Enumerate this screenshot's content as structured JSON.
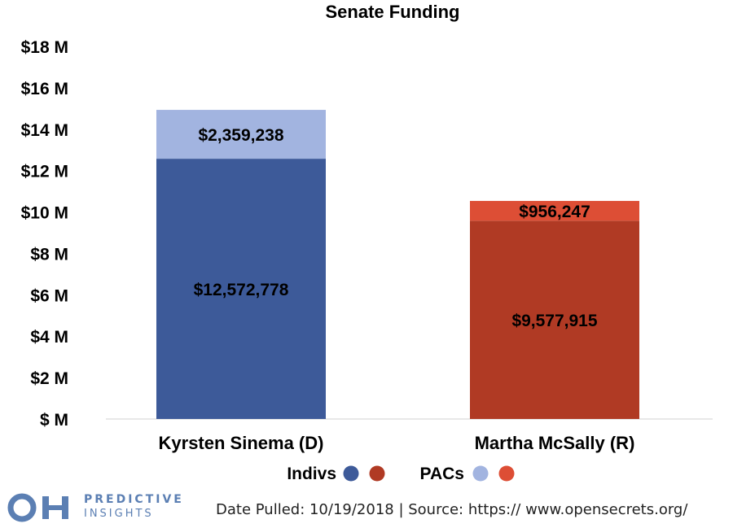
{
  "chart_data": {
    "type": "bar",
    "stacked": true,
    "title": "Senate Funding",
    "categories": [
      "Kyrsten Sinema (D)",
      "Martha McSally (R)"
    ],
    "series": [
      {
        "name": "Indivs",
        "values": [
          12572778,
          9577915
        ],
        "labels": [
          "$12,572,778",
          "$9,577,915"
        ],
        "colors": [
          "#3d5a99",
          "#b03a24"
        ]
      },
      {
        "name": "PACs",
        "values": [
          2359238,
          956247
        ],
        "labels": [
          "$2,359,238",
          "$956,247"
        ],
        "colors": [
          "#a2b4e0",
          "#dd4e35"
        ]
      }
    ],
    "ylim": [
      0,
      18000000
    ],
    "yticks": [
      0,
      2000000,
      4000000,
      6000000,
      8000000,
      10000000,
      12000000,
      14000000,
      16000000,
      18000000
    ],
    "ytick_labels": [
      "$ M",
      "$2 M",
      "$4 M",
      "$6 M",
      "$8 M",
      "$10 M",
      "$12 M",
      "$14 M",
      "$16 M",
      "$18 M"
    ],
    "grid": false,
    "legend_position": "bottom"
  },
  "footer": {
    "brand_line1": "PREDICTIVE",
    "brand_line2": "INSIGHTS",
    "source": "Date Pulled: 10/19/2018   |   Source: https:// www.opensecrets.org/"
  }
}
